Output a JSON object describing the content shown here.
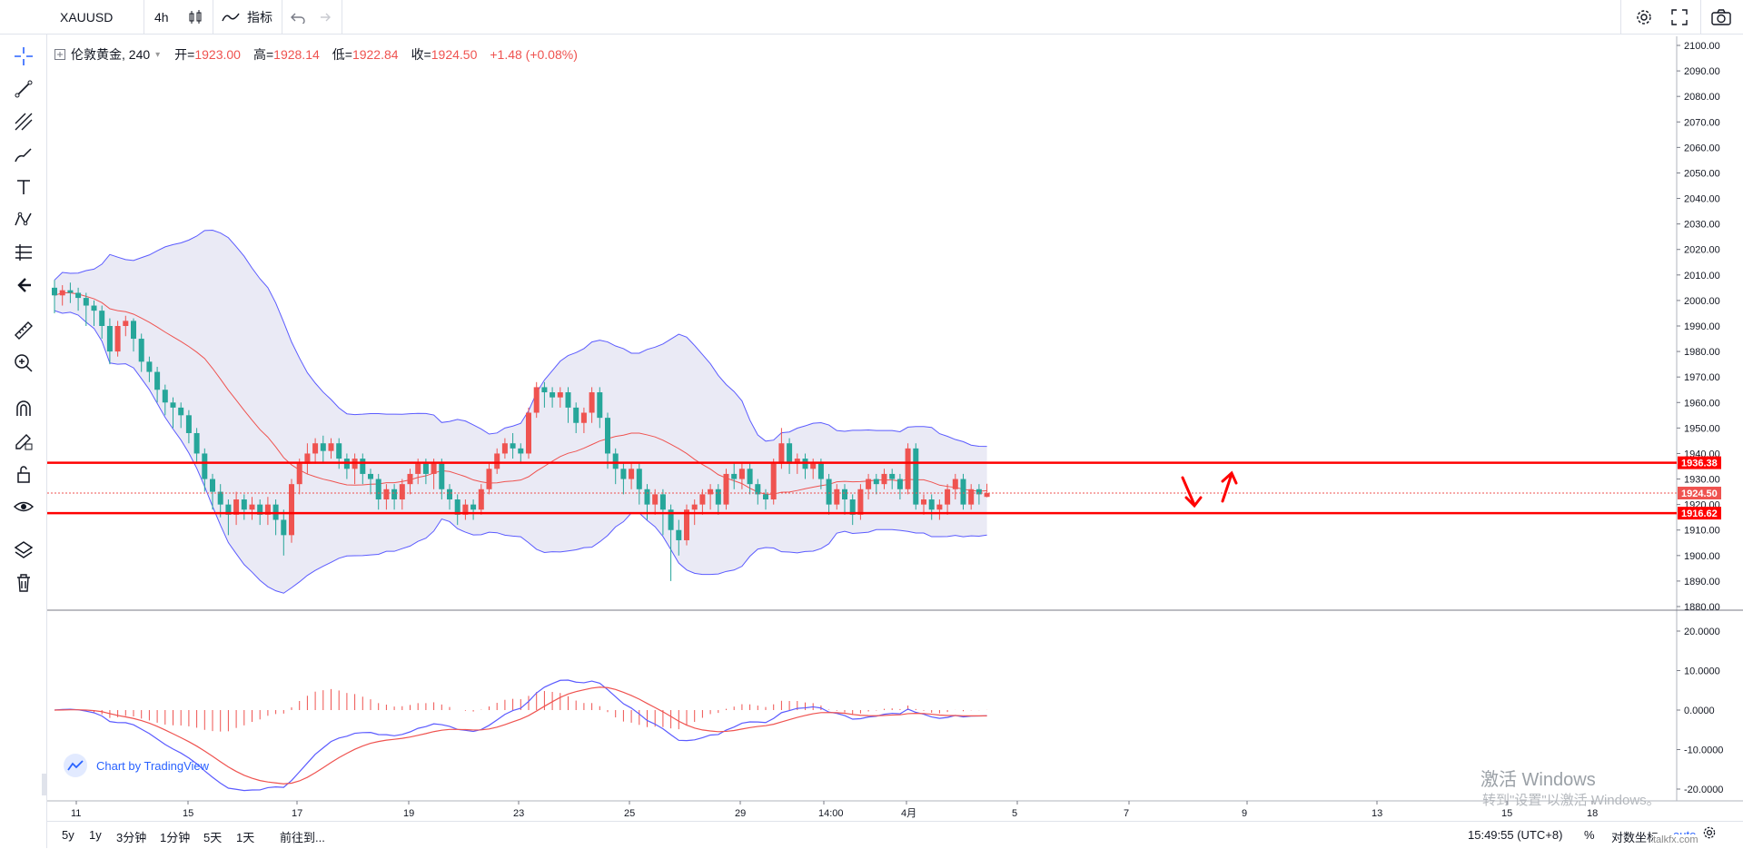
{
  "header": {
    "symbol": "XAUUSD",
    "interval": "4h",
    "indicators_label": "指标"
  },
  "legend": {
    "name": "伦敦黄金, 240",
    "open_label": "开=",
    "open": "1923.00",
    "high_label": "高=",
    "high": "1928.14",
    "low_label": "低=",
    "low": "1922.84",
    "close_label": "收=",
    "close": "1924.50",
    "change": "+1.48 (+0.08%)"
  },
  "bottom": {
    "ranges": [
      "5y",
      "1y",
      "3分钟",
      "1分钟",
      "5天",
      "1天"
    ],
    "goto": "前往到...",
    "clock": "15:49:55 (UTC+8)",
    "percent": "%",
    "log": "对数坐标",
    "auto": "auto"
  },
  "branding": {
    "tv": "Chart by TradingView",
    "site": "talkfx.com"
  },
  "watermark": {
    "line1": "激活 Windows",
    "line2": "转到\"设置\"以激活 Windows。"
  },
  "colors": {
    "up": "#ef5350",
    "down": "#26a69a",
    "band": "#5b5bff",
    "ma": "#ef5350",
    "fill": "#e8e8f4",
    "levels": "#ff0000"
  },
  "chart_data": [
    {
      "type": "candlestick",
      "title": "",
      "price_axis": [
        "2100.00",
        "2090.00",
        "2080.00",
        "2070.00",
        "2060.00",
        "2050.00",
        "2040.00",
        "2030.00",
        "2020.00",
        "2010.00",
        "2000.00",
        "1990.00",
        "1980.00",
        "1970.00",
        "1960.00",
        "1950.00",
        "1940.00",
        "1930.00",
        "1920.00",
        "1910.00",
        "1900.00",
        "1890.00",
        "1880.00"
      ],
      "ylim": [
        1880,
        2100
      ],
      "time_axis": [
        "11",
        "15",
        "17",
        "19",
        "23",
        "25",
        "29",
        "14:00",
        "4月",
        "5",
        "7",
        "9",
        "13",
        "15",
        "18"
      ],
      "levels": [
        {
          "value": 1936.38,
          "label": "1936.38"
        },
        {
          "value": 1916.62,
          "label": "1916.62"
        }
      ],
      "last_price": {
        "value": 1924.5,
        "label": "1924.50"
      },
      "candles": [
        [
          2005,
          2002,
          2008,
          1995
        ],
        [
          2002,
          2004,
          2006,
          1998
        ],
        [
          2004,
          2003,
          2007,
          1999
        ],
        [
          2003,
          2001,
          2005,
          1996
        ],
        [
          2001,
          1998,
          2003,
          1990
        ],
        [
          1998,
          1996,
          2000,
          1990
        ],
        [
          1996,
          1990,
          1998,
          1985
        ],
        [
          1990,
          1980,
          1993,
          1975
        ],
        [
          1980,
          1990,
          1992,
          1978
        ],
        [
          1990,
          1992,
          1994,
          1986
        ],
        [
          1992,
          1985,
          1993,
          1980
        ],
        [
          1985,
          1976,
          1987,
          1972
        ],
        [
          1976,
          1972,
          1978,
          1968
        ],
        [
          1972,
          1965,
          1974,
          1960
        ],
        [
          1965,
          1960,
          1967,
          1955
        ],
        [
          1960,
          1958,
          1962,
          1950
        ],
        [
          1958,
          1955,
          1960,
          1950
        ],
        [
          1955,
          1948,
          1957,
          1944
        ],
        [
          1948,
          1940,
          1950,
          1936
        ],
        [
          1940,
          1930,
          1942,
          1925
        ],
        [
          1930,
          1925,
          1932,
          1918
        ],
        [
          1925,
          1920,
          1928,
          1915
        ],
        [
          1920,
          1916,
          1922,
          1908
        ],
        [
          1916,
          1922,
          1925,
          1912
        ],
        [
          1922,
          1918,
          1924,
          1914
        ],
        [
          1918,
          1920,
          1923,
          1914
        ],
        [
          1920,
          1916,
          1922,
          1912
        ],
        [
          1916,
          1920,
          1923,
          1912
        ],
        [
          1920,
          1914,
          1922,
          1908
        ],
        [
          1914,
          1908,
          1918,
          1900
        ],
        [
          1908,
          1928,
          1930,
          1905
        ],
        [
          1928,
          1936,
          1938,
          1924
        ],
        [
          1936,
          1940,
          1944,
          1932
        ],
        [
          1940,
          1944,
          1946,
          1936
        ],
        [
          1944,
          1941,
          1947,
          1936
        ],
        [
          1941,
          1944,
          1946,
          1938
        ],
        [
          1944,
          1938,
          1946,
          1934
        ],
        [
          1938,
          1934,
          1940,
          1930
        ],
        [
          1934,
          1938,
          1940,
          1928
        ],
        [
          1938,
          1932,
          1940,
          1928
        ],
        [
          1932,
          1930,
          1934,
          1924
        ],
        [
          1930,
          1922,
          1932,
          1918
        ],
        [
          1922,
          1926,
          1928,
          1918
        ],
        [
          1926,
          1922,
          1928,
          1918
        ],
        [
          1922,
          1928,
          1930,
          1918
        ],
        [
          1928,
          1932,
          1934,
          1924
        ],
        [
          1932,
          1936,
          1938,
          1928
        ],
        [
          1936,
          1932,
          1938,
          1928
        ],
        [
          1932,
          1936,
          1938,
          1926
        ],
        [
          1936,
          1926,
          1938,
          1922
        ],
        [
          1926,
          1922,
          1928,
          1918
        ],
        [
          1922,
          1916,
          1924,
          1912
        ],
        [
          1916,
          1920,
          1922,
          1914
        ],
        [
          1920,
          1918,
          1922,
          1914
        ],
        [
          1918,
          1926,
          1928,
          1916
        ],
        [
          1926,
          1934,
          1936,
          1924
        ],
        [
          1934,
          1940,
          1942,
          1932
        ],
        [
          1940,
          1944,
          1946,
          1938
        ],
        [
          1944,
          1942,
          1948,
          1938
        ],
        [
          1942,
          1940,
          1944,
          1936
        ],
        [
          1940,
          1956,
          1958,
          1938
        ],
        [
          1956,
          1966,
          1968,
          1954
        ],
        [
          1966,
          1964,
          1968,
          1958
        ],
        [
          1964,
          1962,
          1966,
          1958
        ],
        [
          1962,
          1964,
          1966,
          1958
        ],
        [
          1964,
          1958,
          1966,
          1952
        ],
        [
          1958,
          1952,
          1960,
          1948
        ],
        [
          1952,
          1956,
          1958,
          1948
        ],
        [
          1956,
          1964,
          1966,
          1952
        ],
        [
          1964,
          1954,
          1966,
          1950
        ],
        [
          1954,
          1940,
          1956,
          1934
        ],
        [
          1940,
          1934,
          1942,
          1928
        ],
        [
          1934,
          1930,
          1936,
          1924
        ],
        [
          1930,
          1934,
          1936,
          1926
        ],
        [
          1934,
          1926,
          1936,
          1920
        ],
        [
          1926,
          1920,
          1928,
          1914
        ],
        [
          1920,
          1924,
          1926,
          1916
        ],
        [
          1924,
          1918,
          1926,
          1908
        ],
        [
          1918,
          1910,
          1920,
          1890
        ],
        [
          1910,
          1906,
          1914,
          1900
        ],
        [
          1906,
          1918,
          1920,
          1904
        ],
        [
          1918,
          1920,
          1922,
          1912
        ],
        [
          1920,
          1924,
          1926,
          1916
        ],
        [
          1924,
          1926,
          1928,
          1918
        ],
        [
          1926,
          1920,
          1928,
          1916
        ],
        [
          1920,
          1932,
          1934,
          1918
        ],
        [
          1932,
          1930,
          1936,
          1926
        ],
        [
          1930,
          1934,
          1936,
          1926
        ],
        [
          1934,
          1928,
          1936,
          1924
        ],
        [
          1928,
          1924,
          1930,
          1920
        ],
        [
          1924,
          1922,
          1926,
          1918
        ],
        [
          1922,
          1936,
          1938,
          1920
        ],
        [
          1936,
          1944,
          1950,
          1934
        ],
        [
          1944,
          1936,
          1946,
          1932
        ],
        [
          1936,
          1938,
          1940,
          1932
        ],
        [
          1938,
          1934,
          1940,
          1930
        ],
        [
          1934,
          1936,
          1938,
          1930
        ],
        [
          1936,
          1930,
          1938,
          1926
        ],
        [
          1930,
          1920,
          1932,
          1916
        ],
        [
          1920,
          1926,
          1928,
          1918
        ],
        [
          1926,
          1922,
          1928,
          1916
        ],
        [
          1922,
          1916,
          1924,
          1912
        ],
        [
          1916,
          1926,
          1928,
          1914
        ],
        [
          1926,
          1930,
          1932,
          1922
        ],
        [
          1930,
          1928,
          1932,
          1924
        ],
        [
          1928,
          1932,
          1934,
          1926
        ],
        [
          1932,
          1930,
          1934,
          1926
        ],
        [
          1930,
          1926,
          1932,
          1922
        ],
        [
          1926,
          1942,
          1944,
          1924
        ],
        [
          1942,
          1920,
          1944,
          1918
        ],
        [
          1920,
          1922,
          1924,
          1916
        ],
        [
          1922,
          1918,
          1924,
          1914
        ],
        [
          1918,
          1920,
          1922,
          1914
        ],
        [
          1920,
          1926,
          1928,
          1916
        ],
        [
          1926,
          1930,
          1932,
          1922
        ],
        [
          1930,
          1920,
          1932,
          1918
        ],
        [
          1920,
          1926,
          1928,
          1918
        ],
        [
          1926,
          1924,
          1928,
          1920
        ],
        [
          1923,
          1924.5,
          1928.14,
          1922.84
        ]
      ]
    },
    {
      "type": "line",
      "title": "",
      "y_axis": [
        "20.0000",
        "10.0000",
        "0.0000",
        "-10.0000",
        "-20.0000"
      ],
      "ylim": [
        -20,
        20
      ]
    }
  ]
}
